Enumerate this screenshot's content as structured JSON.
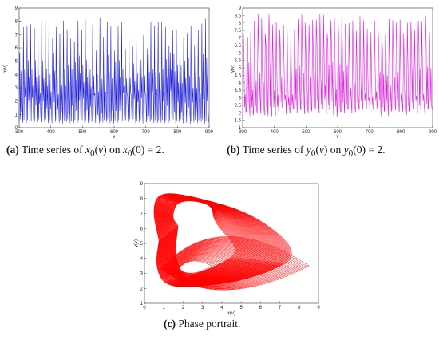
{
  "chart_data": [
    {
      "type": "line",
      "xlabel": "v",
      "ylabel": "x(v)",
      "xlim": [
        300,
        900
      ],
      "ylim": [
        0,
        9
      ],
      "xticks": [
        "300",
        "400",
        "500",
        "600",
        "700",
        "800",
        "900"
      ],
      "yticks": [
        "0",
        "1",
        "2",
        "3",
        "4",
        "5",
        "6",
        "7",
        "8",
        "9"
      ],
      "color": "#1f1fd6",
      "series": [
        {
          "x_start": 300,
          "x_end": 900,
          "period": 11.5,
          "y_min": 0.3,
          "y_max_range": [
            5.6,
            8.3
          ],
          "y_mid_band": [
            1.2,
            3.2
          ]
        }
      ]
    },
    {
      "type": "line",
      "xlabel": "v",
      "ylabel": "y(v)",
      "xlim": [
        300,
        900
      ],
      "ylim": [
        1,
        9
      ],
      "xticks": [
        "300",
        "400",
        "500",
        "600",
        "700",
        "800",
        "900"
      ],
      "yticks": [
        "1",
        "1.5",
        "2",
        "2.5",
        "3",
        "3.5",
        "4",
        "4.5",
        "5",
        "5.5",
        "6",
        "6.5",
        "7",
        "7.5",
        "8",
        "8.5",
        "9"
      ],
      "color": "#e01ee0",
      "series": [
        {
          "x_start": 300,
          "x_end": 900,
          "period": 11.5,
          "y_min_range": [
            1.7,
            2.3
          ],
          "y_max_range": [
            7.2,
            8.6
          ]
        }
      ]
    },
    {
      "type": "scatter",
      "xlabel": "x(v)",
      "ylabel": "y(v)",
      "xlim": [
        0,
        9
      ],
      "ylim": [
        1,
        9
      ],
      "xticks": [
        "0",
        "1",
        "2",
        "3",
        "4",
        "5",
        "6",
        "7",
        "8",
        "9"
      ],
      "yticks": [
        "1",
        "2",
        "3",
        "4",
        "5",
        "6",
        "7",
        "8",
        "9"
      ],
      "color": "#ff0000",
      "attractor": {
        "x_range": [
          0.3,
          8.2
        ],
        "y_range": [
          2.0,
          8.5
        ]
      }
    }
  ],
  "captions": {
    "a": {
      "label": "(a)",
      "pre": " Time series of ",
      "f1": "x",
      "s1": "0",
      "mid1": "(",
      "v1": "v",
      "mid2": ") on ",
      "f2": "x",
      "s2": "0",
      "end": "(0) = 2."
    },
    "b": {
      "label": "(b)",
      "pre": " Time series of ",
      "f1": "y",
      "s1": "0",
      "mid1": "(",
      "v1": "v",
      "mid2": ") on ",
      "f2": "y",
      "s2": "0",
      "end": "(0) = 2."
    },
    "c": {
      "label": "(c)",
      "text": " Phase portrait."
    }
  }
}
